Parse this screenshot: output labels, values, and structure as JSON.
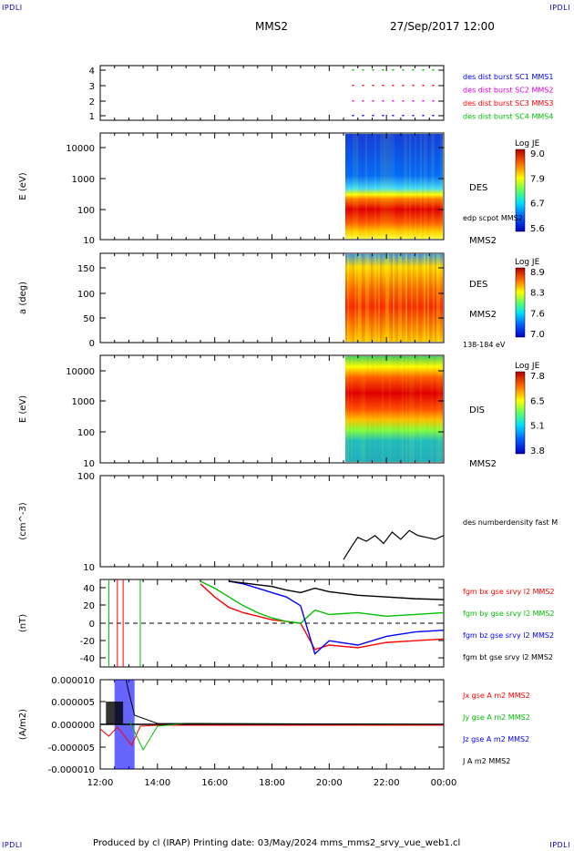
{
  "corner_labels": {
    "tl": "IPDLI",
    "tr": "IPDLI",
    "bl": "IPDLI",
    "br": "IPDLI"
  },
  "header": {
    "spacecraft": "MMS2",
    "datetime": "27/Sep/2017 12:00"
  },
  "footer": {
    "text": "Produced by cl (IRAP)   Printing date: 03/May/2024   mms_mms2_srvy_vue_web1.cl"
  },
  "chart_data": [
    {
      "type": "scatter",
      "panel": "availability",
      "yticks": [
        "1",
        "2",
        "3",
        "4"
      ],
      "legend": [
        {
          "label": "des dist burst SC1 MMS1",
          "color": "#0000ff"
        },
        {
          "label": "des dist burst SC2 MMS2",
          "color": "#e000e0"
        },
        {
          "label": "des dist burst SC3 MMS3",
          "color": "#ff0000"
        },
        {
          "label": "des dist burst SC4 MMS4",
          "color": "#00c000"
        }
      ]
    },
    {
      "type": "heatmap",
      "panel": "des-energy",
      "ylabel": "E (eV)",
      "yscale": "log",
      "yticks": [
        "10000",
        "1000",
        "100",
        "10"
      ],
      "right_labels": [
        "DES",
        "edp scpot MMS2",
        "MMS2"
      ],
      "colorbar": {
        "title": "Log JE",
        "ticks": [
          "9.0",
          "7.9",
          "6.7",
          "5.6"
        ]
      }
    },
    {
      "type": "heatmap",
      "panel": "des-pitch",
      "ylabel": "a (deg)",
      "yticks": [
        "150",
        "100",
        "50",
        "0"
      ],
      "right_labels": [
        "DES",
        "MMS2",
        "138-184 eV"
      ],
      "colorbar": {
        "title": "Log JE",
        "ticks": [
          "8.9",
          "8.3",
          "7.6",
          "7.0"
        ]
      }
    },
    {
      "type": "heatmap",
      "panel": "dis-energy",
      "ylabel": "E (eV)",
      "yscale": "log",
      "yticks": [
        "10000",
        "1000",
        "100",
        "10"
      ],
      "right_labels": [
        "DIS",
        "MMS2"
      ],
      "colorbar": {
        "title": "Log JE",
        "ticks": [
          "7.8",
          "6.5",
          "5.1",
          "3.8"
        ]
      }
    },
    {
      "type": "line",
      "panel": "density",
      "ylabel": "(cm^-3)",
      "yscale": "log",
      "ylim": [
        10,
        100
      ],
      "yticks": [
        "100",
        "10"
      ],
      "series": [
        {
          "name": "des numberdensity fast M",
          "color": "#000000",
          "x": [
            20.5,
            20.8,
            21.0,
            21.3,
            21.6,
            21.9,
            22.2,
            22.5,
            22.8,
            23.1,
            23.4,
            23.7,
            24.0
          ],
          "y": [
            12,
            17,
            21,
            19,
            22,
            18,
            24,
            20,
            25,
            22,
            21,
            20,
            22
          ]
        }
      ]
    },
    {
      "type": "line",
      "panel": "bfield",
      "ylabel": "(nT)",
      "ylim": [
        -50,
        50
      ],
      "yticks": [
        "40",
        "20",
        "0",
        "-20",
        "-40"
      ],
      "series": [
        {
          "name": "fgm bx gse srvy l2 MMS2",
          "color": "#ff0000",
          "x": [
            15.5,
            16.0,
            16.5,
            17.0,
            17.5,
            18.0,
            18.5,
            19.0,
            19.5,
            20.0,
            21.0,
            22.0,
            23.0,
            24.0
          ],
          "y": [
            45,
            30,
            18,
            12,
            8,
            4,
            2,
            0,
            -30,
            -25,
            -28,
            -22,
            -20,
            -18
          ]
        },
        {
          "name": "fgm by gse srvy l2 MMS2",
          "color": "#00c000",
          "x": [
            15.5,
            16.0,
            16.5,
            17.0,
            17.5,
            18.0,
            18.5,
            19.0,
            19.5,
            20.0,
            21.0,
            22.0,
            23.0,
            24.0
          ],
          "y": [
            48,
            40,
            30,
            20,
            12,
            6,
            2,
            0,
            15,
            10,
            12,
            8,
            10,
            12
          ]
        },
        {
          "name": "fgm bz gse srvy l2 MMS2",
          "color": "#0000ff",
          "x": [
            16.5,
            17.0,
            17.5,
            18.0,
            18.5,
            19.0,
            19.5,
            20.0,
            21.0,
            22.0,
            23.0,
            24.0
          ],
          "y": [
            48,
            45,
            40,
            35,
            30,
            20,
            -35,
            -20,
            -25,
            -15,
            -10,
            -8
          ]
        },
        {
          "name": "fgm bt gse srvy l2 MMS2",
          "color": "#000000",
          "x": [
            16.5,
            17.0,
            17.5,
            18.0,
            18.5,
            19.0,
            19.5,
            20.0,
            21.0,
            22.0,
            23.0,
            24.0
          ],
          "y": [
            48,
            46,
            44,
            42,
            38,
            35,
            40,
            36,
            32,
            30,
            28,
            27
          ]
        }
      ]
    },
    {
      "type": "line",
      "panel": "current",
      "ylabel": "(A/m2)",
      "ylim": [
        -1e-05,
        1e-05
      ],
      "yticks": [
        "0.000010",
        "0.000005",
        "0.000000",
        "-0.000005",
        "-0.000010"
      ],
      "xticks": [
        "12:00",
        "14:00",
        "16:00",
        "18:00",
        "20:00",
        "22:00",
        "00:00"
      ],
      "series": [
        {
          "name": "Jx gse A m2 MMS2",
          "color": "#ff0000"
        },
        {
          "name": "Jy gse A m2 MMS2",
          "color": "#00c000"
        },
        {
          "name": "Jz gse A m2 MMS2",
          "color": "#0000ff"
        },
        {
          "name": "J A m2 MMS2",
          "color": "#000000"
        }
      ]
    }
  ]
}
